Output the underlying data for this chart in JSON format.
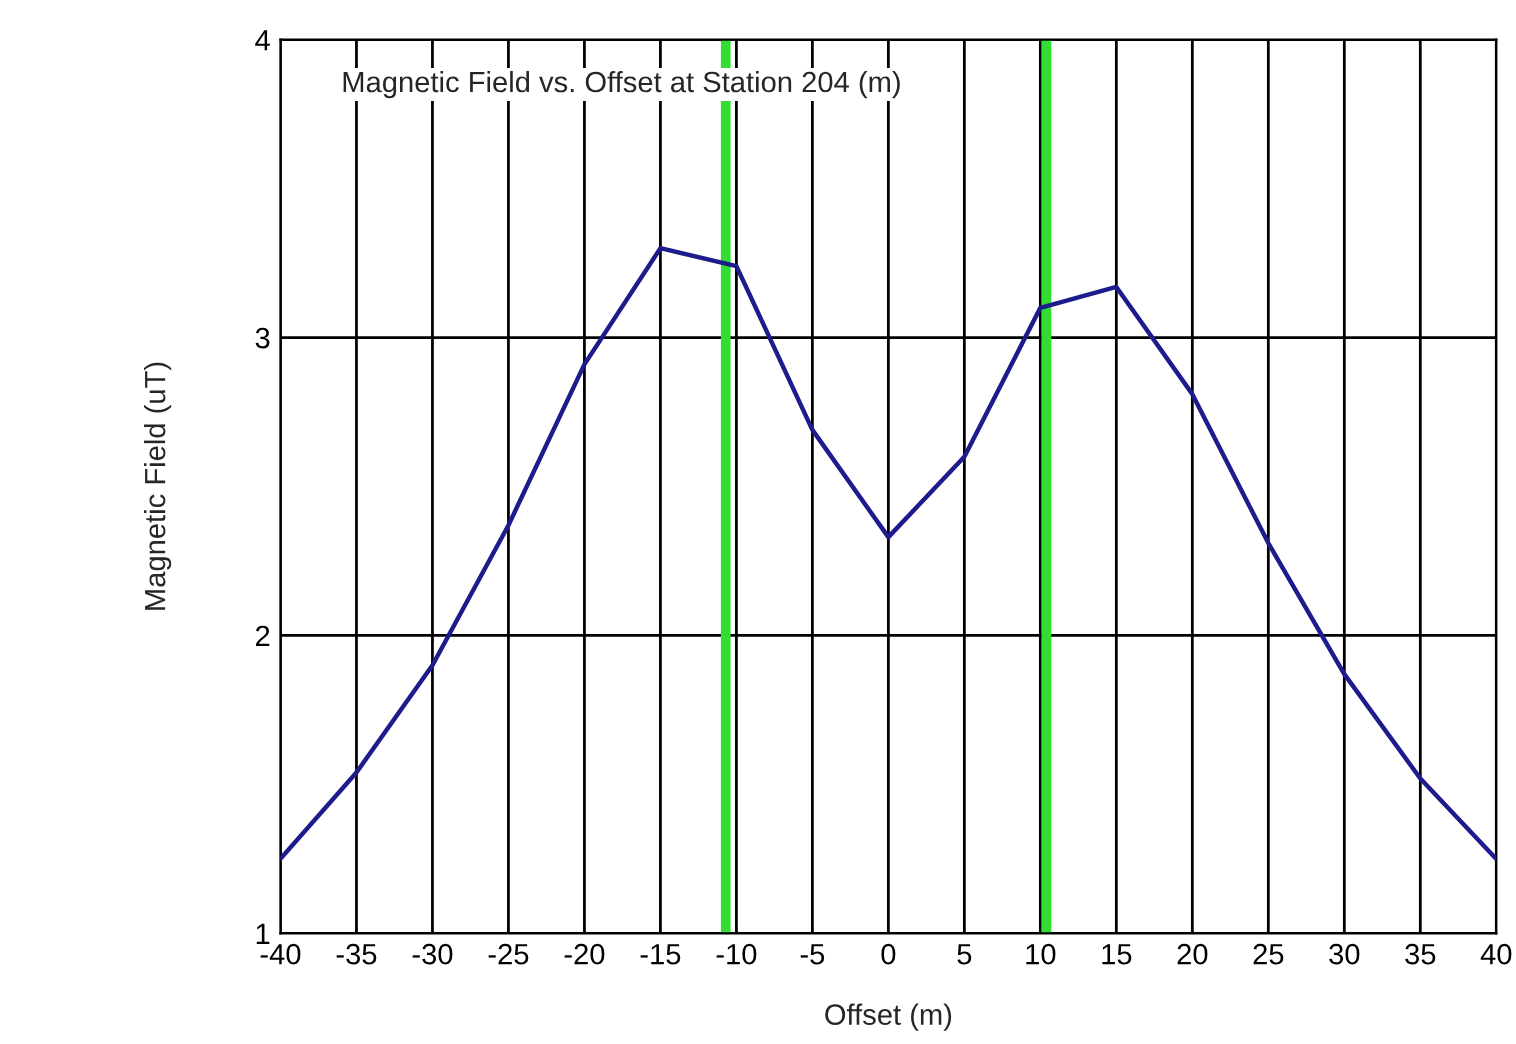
{
  "chart_data": {
    "type": "line",
    "title": "Magnetic Field vs. Offset at Station 204 (m)",
    "xlabel": "Offset (m)",
    "ylabel": "Magnetic Field (uT)",
    "x": [
      -40,
      -35,
      -30,
      -25,
      -20,
      -15,
      -10,
      -5,
      0,
      5,
      10,
      15,
      20,
      25,
      30,
      35,
      40
    ],
    "series": [
      {
        "color": "#1c1c8c",
        "values": [
          1.25,
          1.54,
          1.9,
          2.37,
          2.91,
          3.3,
          3.24,
          2.69,
          2.33,
          2.6,
          3.1,
          3.17,
          2.81,
          2.31,
          1.87,
          1.52,
          1.25
        ]
      }
    ],
    "xlim": [
      -40,
      40
    ],
    "xticks": [
      -40,
      -35,
      -30,
      -25,
      -20,
      -15,
      -10,
      -5,
      0,
      5,
      10,
      15,
      20,
      25,
      30,
      35,
      40
    ],
    "ylim": [
      1,
      4
    ],
    "yticks": [
      1,
      2,
      3,
      4
    ],
    "ref_lines": [
      {
        "axis": "x",
        "value": -10.7,
        "color": "#33dd33"
      },
      {
        "axis": "x",
        "value": 10.4,
        "color": "#33dd33"
      }
    ],
    "grid": true,
    "legend": false,
    "marker": "none",
    "line_style": "solid"
  }
}
